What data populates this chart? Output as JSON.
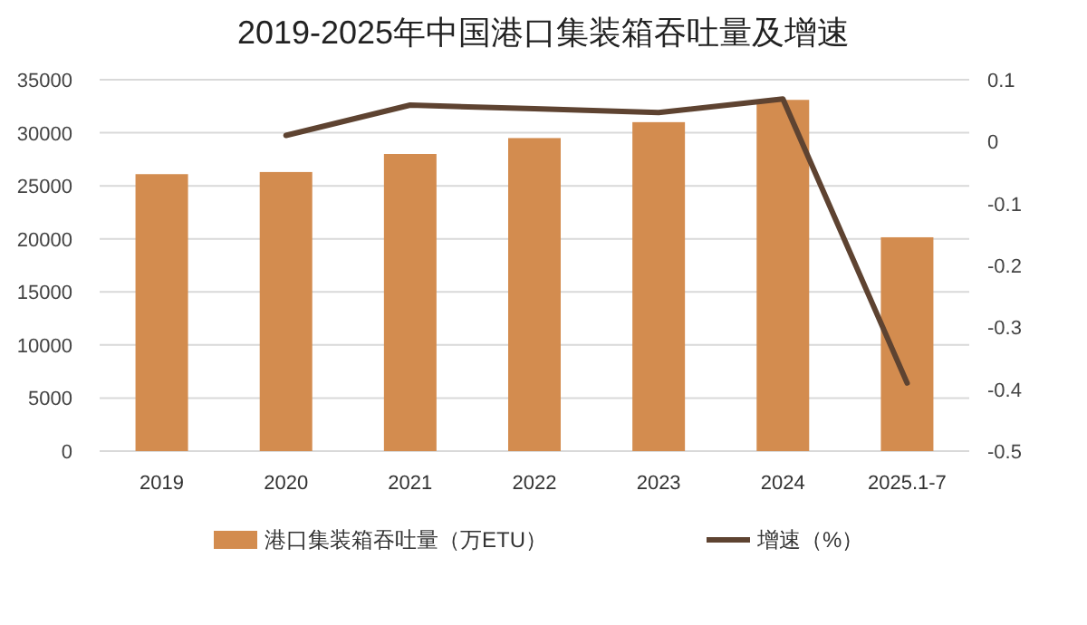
{
  "chart_data": {
    "type": "bar",
    "title": "2019-2025年中国港口集装箱吞吐量及增速",
    "categories": [
      "2019",
      "2020",
      "2021",
      "2022",
      "2023",
      "2024",
      "2025.1-7"
    ],
    "series": [
      {
        "name": "港口集装箱吞吐量（万ETU）",
        "color": "#d38c4f",
        "values": [
          26100,
          26300,
          28000,
          29500,
          31000,
          33100,
          20150
        ]
      },
      {
        "name": "增速（%）",
        "color": "#5e4331",
        "type": "line",
        "axis": "y2",
        "values": [
          null,
          0.01,
          0.059,
          0.053,
          0.047,
          0.069,
          -0.39
        ]
      }
    ],
    "ylim": [
      0,
      35000
    ],
    "yticks": [
      0,
      5000,
      10000,
      15000,
      20000,
      25000,
      30000,
      35000
    ],
    "y2lim": [
      -0.5,
      0.1
    ],
    "y2ticks": [
      -0.5,
      -0.4,
      -0.3,
      -0.2,
      -0.1,
      0,
      0.1
    ],
    "grid": "y",
    "legend": "bottom"
  }
}
